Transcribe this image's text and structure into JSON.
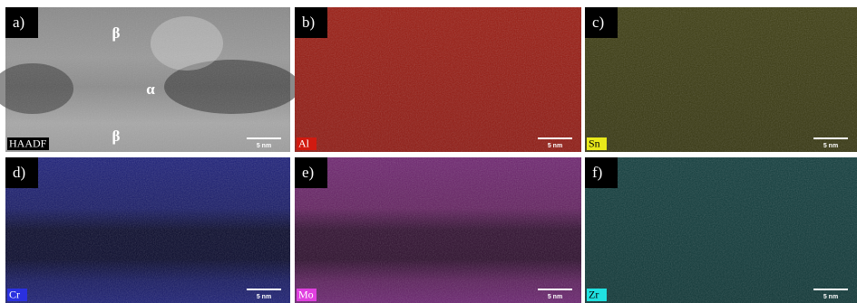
{
  "panels": [
    {
      "label": "a)",
      "tag": "HAADF",
      "scale": "5 nm",
      "annotations": [
        "β",
        "α",
        "β"
      ]
    },
    {
      "label": "b)",
      "tag": "Al",
      "scale": "5 nm"
    },
    {
      "label": "c)",
      "tag": "Sn",
      "scale": "5 nm"
    },
    {
      "label": "d)",
      "tag": "Cr",
      "scale": "5 nm"
    },
    {
      "label": "e)",
      "tag": "Mo",
      "scale": "5 nm"
    },
    {
      "label": "f)",
      "tag": "Zr",
      "scale": "5 nm"
    }
  ]
}
